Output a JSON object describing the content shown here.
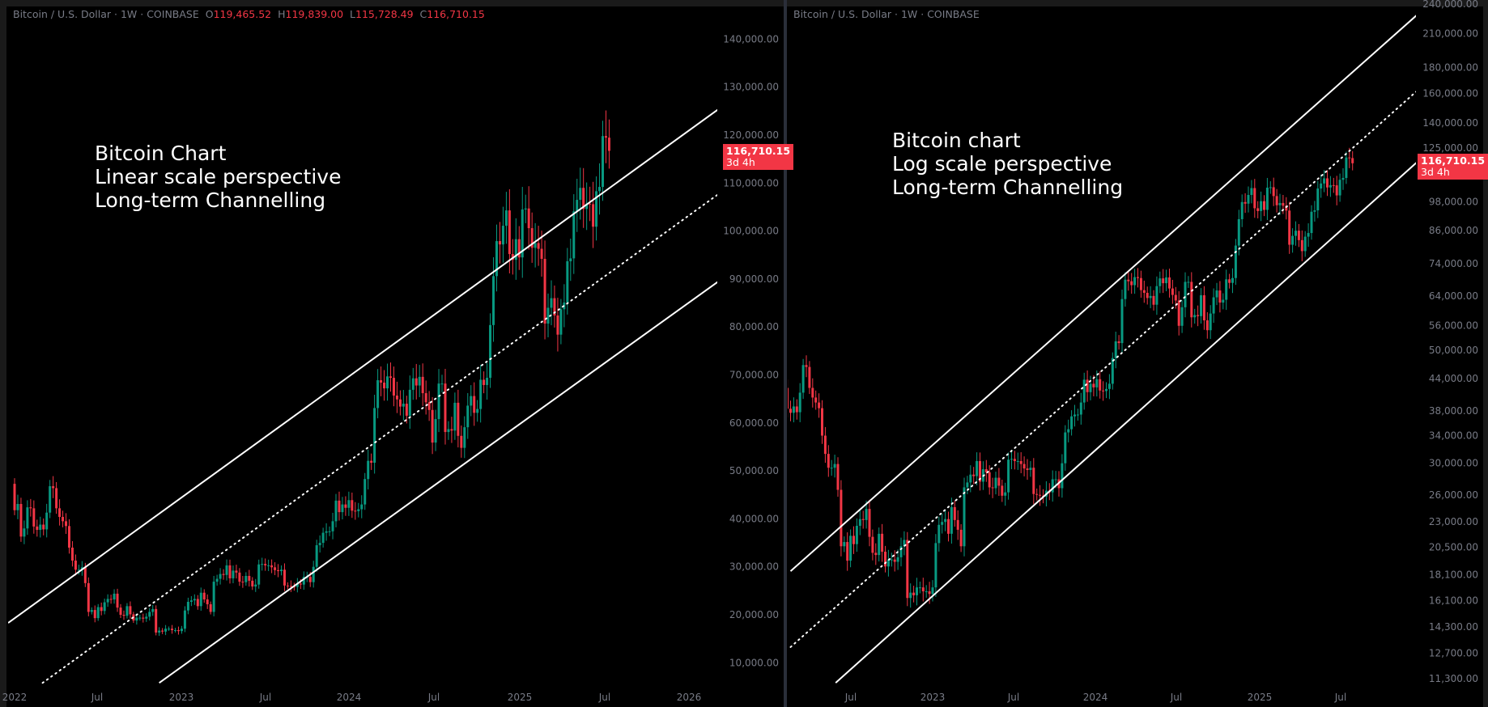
{
  "colors": {
    "up": "#089981",
    "down": "#f23645",
    "axis_text": "#787b86",
    "background": "#000000",
    "line": "#ffffff"
  },
  "header": {
    "symbol": "Bitcoin / U.S. Dollar · 1W · COINBASE",
    "open_label": "O",
    "open": "119,465.52",
    "high_label": "H",
    "high": "119,839.00",
    "low_label": "L",
    "low": "115,728.49",
    "close_label": "C",
    "close": "116,710.15"
  },
  "header_right": {
    "symbol": "Bitcoin / U.S. Dollar · 1W · COINBASE"
  },
  "price_label": {
    "price": "116,710.15",
    "countdown": "3d 4h"
  },
  "notes": {
    "left": [
      "Bitcoin Chart",
      "Linear scale perspective",
      "Long-term Channelling"
    ],
    "right": [
      "Bitcoin chart",
      "Log scale perspective",
      "Long-term Channelling"
    ]
  },
  "chart_data": [
    {
      "type": "candlestick",
      "scale": "linear",
      "interval": "1W",
      "first_week": "2022-01-03",
      "x_ticks": [
        "2022",
        "Jul",
        "2023",
        "Jul",
        "2024",
        "Jul",
        "2025",
        "Jul",
        "2026"
      ],
      "y_ticks": [
        "140,000.00",
        "130,000.00",
        "120,000.00",
        "110,000.00",
        "100,000.00",
        "90,000.00",
        "80,000.00",
        "70,000.00",
        "60,000.00",
        "50,000.00",
        "40,000.00",
        "30,000.00",
        "20,000.00",
        "10,000.00"
      ],
      "channel": [
        {
          "style": "solid",
          "from": [
            "2021-12-20",
            18300
          ],
          "to": [
            "2026-03-16",
            125400
          ]
        },
        {
          "style": "dotted",
          "from": [
            "2022-03-05",
            5800
          ],
          "to": [
            "2026-03-16",
            107700
          ]
        },
        {
          "style": "solid",
          "from": [
            "2022-11-14",
            5800
          ],
          "to": [
            "2026-03-16",
            89500
          ]
        }
      ]
    },
    {
      "type": "candlestick",
      "scale": "log",
      "interval": "1W",
      "first_week": "2022-01-03",
      "x_ticks": [
        "Jul",
        "2023",
        "Jul",
        "2024",
        "Jul",
        "2025",
        "Jul"
      ],
      "y_ticks": [
        "240,000.00",
        "210,000.00",
        "180,000.00",
        "160,000.00",
        "140,000.00",
        "125,000.00",
        "98,000.00",
        "86,000.00",
        "74,000.00",
        "64,000.00",
        "56,000.00",
        "50,000.00",
        "44,000.00",
        "38,000.00",
        "34,000.00",
        "30,000.00",
        "26,000.00",
        "23,000.00",
        "20,500.00",
        "18,100.00",
        "16,100.00",
        "14,300.00",
        "12,700.00",
        "11,300.00"
      ],
      "channel": [
        {
          "style": "solid",
          "from": [
            "2022-02-21",
            18400
          ],
          "to": [
            "2026-01-05",
            239100
          ]
        },
        {
          "style": "dotted",
          "from": [
            "2022-02-21",
            13050
          ],
          "to": [
            "2026-01-05",
            169500
          ]
        },
        {
          "style": "solid",
          "from": [
            "2022-06-01",
            11100
          ],
          "to": [
            "2026-01-05",
            122800
          ]
        }
      ]
    }
  ],
  "weekly_open_start": 47300,
  "weekly_close": [
    41800,
    43100,
    36300,
    38000,
    42400,
    42200,
    38400,
    37700,
    38800,
    37800,
    41300,
    46800,
    46400,
    42200,
    40400,
    39500,
    38500,
    34000,
    31300,
    29400,
    29400,
    29900,
    26600,
    20600,
    21000,
    19300,
    21600,
    20800,
    22600,
    23300,
    23200,
    24400,
    21500,
    20000,
    19800,
    21800,
    20100,
    18800,
    19400,
    19400,
    19200,
    19600,
    20600,
    21200,
    16300,
    16700,
    16500,
    17100,
    17100,
    16800,
    16800,
    16600,
    17100,
    20900,
    22700,
    23000,
    23300,
    21800,
    24600,
    23200,
    22200,
    20600,
    26900,
    27500,
    28500,
    28300,
    30300,
    27600,
    29200,
    28800,
    26900,
    26800,
    28100,
    27100,
    25900,
    26300,
    30500,
    30600,
    30300,
    30300,
    29900,
    29300,
    29100,
    29400,
    26100,
    26000,
    25900,
    25800,
    26500,
    26300,
    27900,
    27900,
    26800,
    30000,
    34500,
    35000,
    37100,
    37400,
    37400,
    39500,
    43800,
    41400,
    43000,
    42300,
    43900,
    41700,
    41600,
    42000,
    43000,
    48300,
    52100,
    51700,
    63100,
    68900,
    68400,
    67200,
    69700,
    69400,
    65700,
    64900,
    63400,
    64000,
    61500,
    66900,
    69300,
    67800,
    69600,
    66200,
    64300,
    62700,
    55900,
    60800,
    68200,
    68200,
    58100,
    58700,
    58400,
    64200,
    57300,
    54800,
    59100,
    63600,
    65600,
    62100,
    62900,
    69000,
    67900,
    69400,
    80400,
    90600,
    97900,
    97200,
    101100,
    104300,
    95200,
    94000,
    98300,
    94500,
    104500,
    104700,
    100600,
    96500,
    97500,
    96300,
    94200,
    80700,
    84000,
    86000,
    82400,
    78400,
    83700,
    85100,
    93700,
    94300,
    104100,
    106500,
    109000,
    104600,
    105700,
    105600,
    100900,
    108300,
    109200,
    119800,
    119465.52,
    116710.15
  ]
}
